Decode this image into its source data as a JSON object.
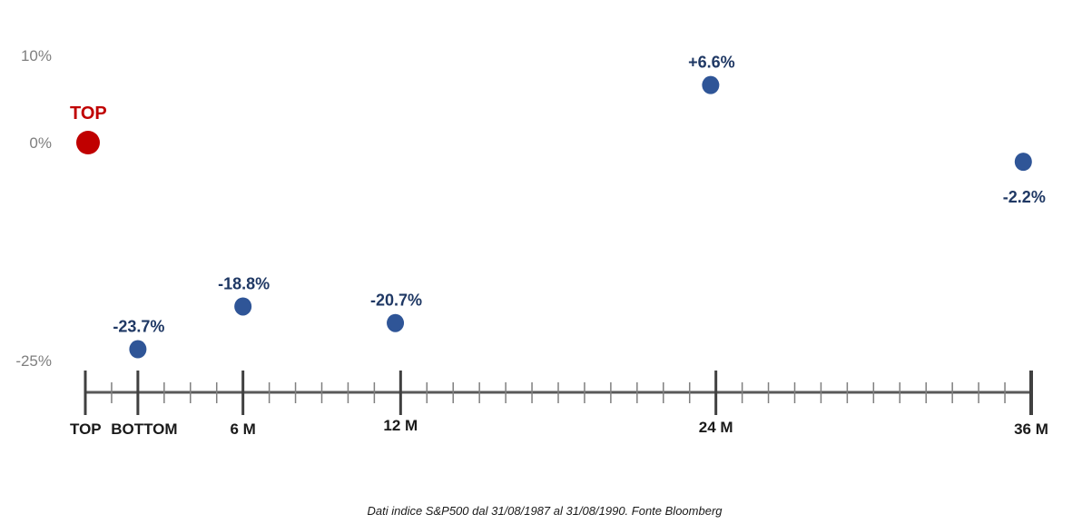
{
  "chart_data": {
    "type": "scatter",
    "title": "",
    "xlabel": "",
    "ylabel": "",
    "y_ticks": [
      "10%",
      "0%",
      "-25%"
    ],
    "y_tick_values": [
      10,
      0,
      -25
    ],
    "xlim": [
      0,
      36
    ],
    "ylim": [
      -25,
      10
    ],
    "x_ticks": [
      {
        "value": 0,
        "label": "TOP"
      },
      {
        "value": 2,
        "label": "BOTTOM"
      },
      {
        "value": 6,
        "label": "6 M"
      },
      {
        "value": 12,
        "label": "12 M"
      },
      {
        "value": 24,
        "label": "24 M"
      },
      {
        "value": 36,
        "label": "36 M"
      }
    ],
    "x_minor_step": 1,
    "points": [
      {
        "x": 0,
        "y": 0,
        "label": "TOP",
        "color": "#c00000",
        "label_pos": "above",
        "kind": "top"
      },
      {
        "x": 2,
        "y": -23.7,
        "label": "-23.7%",
        "color": "#2f5597",
        "label_pos": "above"
      },
      {
        "x": 6,
        "y": -18.8,
        "label": "-18.8%",
        "color": "#2f5597",
        "label_pos": "above"
      },
      {
        "x": 11.8,
        "y": -20.7,
        "label": "-20.7%",
        "color": "#2f5597",
        "label_pos": "above"
      },
      {
        "x": 23.8,
        "y": 6.6,
        "label": "+6.6%",
        "color": "#2f5597",
        "label_pos": "above"
      },
      {
        "x": 35.7,
        "y": -2.2,
        "label": "-2.2%",
        "color": "#2f5597",
        "label_pos": "below"
      }
    ],
    "grid": false,
    "colors": {
      "axis": "#595959",
      "major_tick": "#404040",
      "minor_tick": "#7f7f7f"
    }
  },
  "source_note": "Dati indice S&P500 dal 31/08/1987 al 31/08/1990. Fonte Bloomberg"
}
